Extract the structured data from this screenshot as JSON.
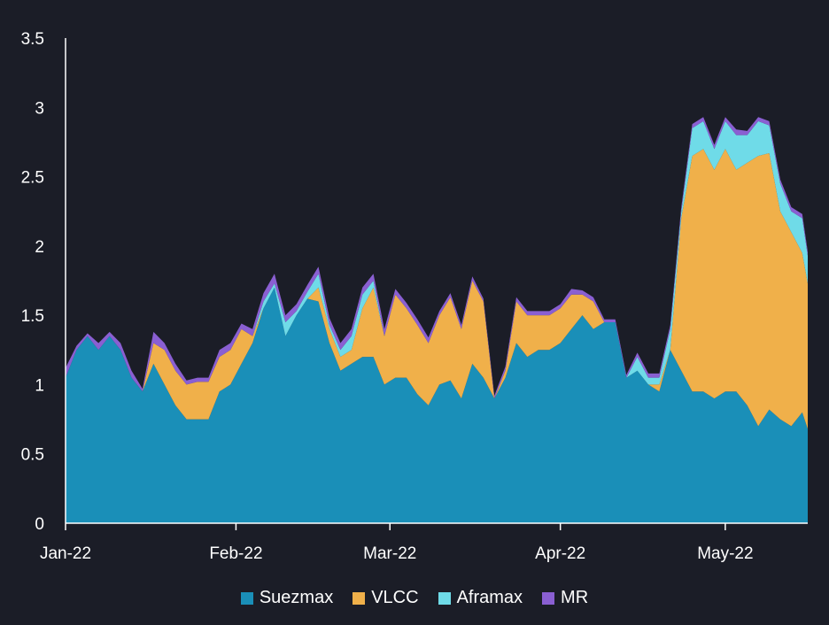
{
  "chart_data": {
    "type": "area",
    "stacked": true,
    "title": "",
    "xlabel": "",
    "ylabel": "",
    "ylim": [
      0,
      3.5
    ],
    "y_ticks": [
      "0",
      "0.5",
      "1",
      "1.5",
      "2",
      "2.5",
      "3",
      "3.5"
    ],
    "x_range": [
      "2022-01-01",
      "2022-05-16"
    ],
    "x_ticks": [
      {
        "date": "2022-01-01",
        "label": "Jan-22"
      },
      {
        "date": "2022-02-01",
        "label": "Feb-22"
      },
      {
        "date": "2022-03-01",
        "label": "Mar-22"
      },
      {
        "date": "2022-04-01",
        "label": "Apr-22"
      },
      {
        "date": "2022-05-01",
        "label": "May-22"
      }
    ],
    "legend_position": "bottom-center",
    "grid": false,
    "x": [
      "2022-01-01",
      "2022-01-03",
      "2022-01-05",
      "2022-01-07",
      "2022-01-09",
      "2022-01-11",
      "2022-01-13",
      "2022-01-15",
      "2022-01-17",
      "2022-01-19",
      "2022-01-21",
      "2022-01-23",
      "2022-01-25",
      "2022-01-27",
      "2022-01-29",
      "2022-01-31",
      "2022-02-02",
      "2022-02-04",
      "2022-02-06",
      "2022-02-08",
      "2022-02-10",
      "2022-02-12",
      "2022-02-14",
      "2022-02-16",
      "2022-02-18",
      "2022-02-20",
      "2022-02-22",
      "2022-02-24",
      "2022-02-26",
      "2022-02-28",
      "2022-03-02",
      "2022-03-04",
      "2022-03-06",
      "2022-03-08",
      "2022-03-10",
      "2022-03-12",
      "2022-03-14",
      "2022-03-16",
      "2022-03-18",
      "2022-03-20",
      "2022-03-22",
      "2022-03-24",
      "2022-03-26",
      "2022-03-28",
      "2022-03-30",
      "2022-04-01",
      "2022-04-03",
      "2022-04-05",
      "2022-04-07",
      "2022-04-09",
      "2022-04-11",
      "2022-04-13",
      "2022-04-15",
      "2022-04-17",
      "2022-04-19",
      "2022-04-21",
      "2022-04-23",
      "2022-04-25",
      "2022-04-27",
      "2022-04-29",
      "2022-05-01",
      "2022-05-03",
      "2022-05-05",
      "2022-05-07",
      "2022-05-09",
      "2022-05-11",
      "2022-05-13",
      "2022-05-15",
      "2022-05-16"
    ],
    "series": [
      {
        "name": "Suezmax",
        "color": "#1a8fb8",
        "values": [
          1.05,
          1.25,
          1.35,
          1.25,
          1.35,
          1.25,
          1.05,
          0.95,
          1.15,
          1.0,
          0.85,
          0.75,
          0.75,
          0.75,
          0.95,
          1.0,
          1.15,
          1.3,
          1.55,
          1.7,
          1.35,
          1.5,
          1.62,
          1.6,
          1.3,
          1.1,
          1.15,
          1.2,
          1.2,
          1.0,
          1.05,
          1.05,
          0.93,
          0.85,
          1.0,
          1.03,
          0.9,
          1.15,
          1.05,
          0.9,
          1.05,
          1.3,
          1.2,
          1.25,
          1.25,
          1.3,
          1.4,
          1.5,
          1.4,
          1.45,
          1.45,
          1.05,
          1.1,
          1.0,
          0.95,
          1.25,
          1.1,
          0.95,
          0.95,
          0.9,
          0.95,
          0.95,
          0.85,
          0.7,
          0.82,
          0.75,
          0.7,
          0.8,
          0.68
        ]
      },
      {
        "name": "VLCC",
        "color": "#f0b04a",
        "values": [
          0,
          0,
          0,
          0,
          0,
          0,
          0,
          0,
          0.15,
          0.25,
          0.25,
          0.25,
          0.27,
          0.27,
          0.25,
          0.25,
          0.25,
          0.05,
          0,
          0,
          0,
          0,
          0,
          0.1,
          0.1,
          0.1,
          0.1,
          0.35,
          0.5,
          0.35,
          0.6,
          0.5,
          0.5,
          0.45,
          0.5,
          0.6,
          0.5,
          0.6,
          0.55,
          0,
          0.05,
          0.3,
          0.3,
          0.25,
          0.25,
          0.25,
          0.25,
          0.15,
          0.2,
          0,
          0,
          0,
          0,
          0,
          0.05,
          0,
          1.1,
          1.7,
          1.75,
          1.65,
          1.75,
          1.6,
          1.75,
          1.95,
          1.85,
          1.5,
          1.4,
          1.15,
          1.05
        ]
      },
      {
        "name": "Aframax",
        "color": "#6fdbe8",
        "values": [
          0,
          0,
          0,
          0,
          0,
          0,
          0,
          0,
          0,
          0,
          0,
          0,
          0,
          0,
          0,
          0,
          0,
          0,
          0.05,
          0.03,
          0.1,
          0.03,
          0.05,
          0.1,
          0.03,
          0.05,
          0.1,
          0.1,
          0.05,
          0,
          0,
          0,
          0,
          0,
          0,
          0,
          0,
          0,
          0,
          0,
          0,
          0,
          0,
          0,
          0,
          0,
          0,
          0,
          0,
          0,
          0,
          0,
          0.1,
          0.05,
          0.05,
          0.15,
          0.05,
          0.2,
          0.2,
          0.15,
          0.2,
          0.25,
          0.2,
          0.25,
          0.2,
          0.2,
          0.15,
          0.25,
          0.2
        ]
      },
      {
        "name": "MR",
        "color": "#8a5fd2",
        "values": [
          0.07,
          0.03,
          0.02,
          0.05,
          0.03,
          0.05,
          0.05,
          0.02,
          0.08,
          0.05,
          0.05,
          0.03,
          0.03,
          0.03,
          0.05,
          0.05,
          0.04,
          0.05,
          0.06,
          0.07,
          0.05,
          0.05,
          0.05,
          0.05,
          0.05,
          0.05,
          0.05,
          0.05,
          0.05,
          0.05,
          0.04,
          0.04,
          0.04,
          0.04,
          0.03,
          0.03,
          0.03,
          0.03,
          0.02,
          0.02,
          0.03,
          0.03,
          0.03,
          0.03,
          0.03,
          0.03,
          0.04,
          0.03,
          0.03,
          0.02,
          0.02,
          0.02,
          0.03,
          0.03,
          0.03,
          0.03,
          0.03,
          0.03,
          0.03,
          0.03,
          0.03,
          0.04,
          0.03,
          0.03,
          0.03,
          0.03,
          0.03,
          0.03,
          0.03
        ]
      }
    ]
  }
}
